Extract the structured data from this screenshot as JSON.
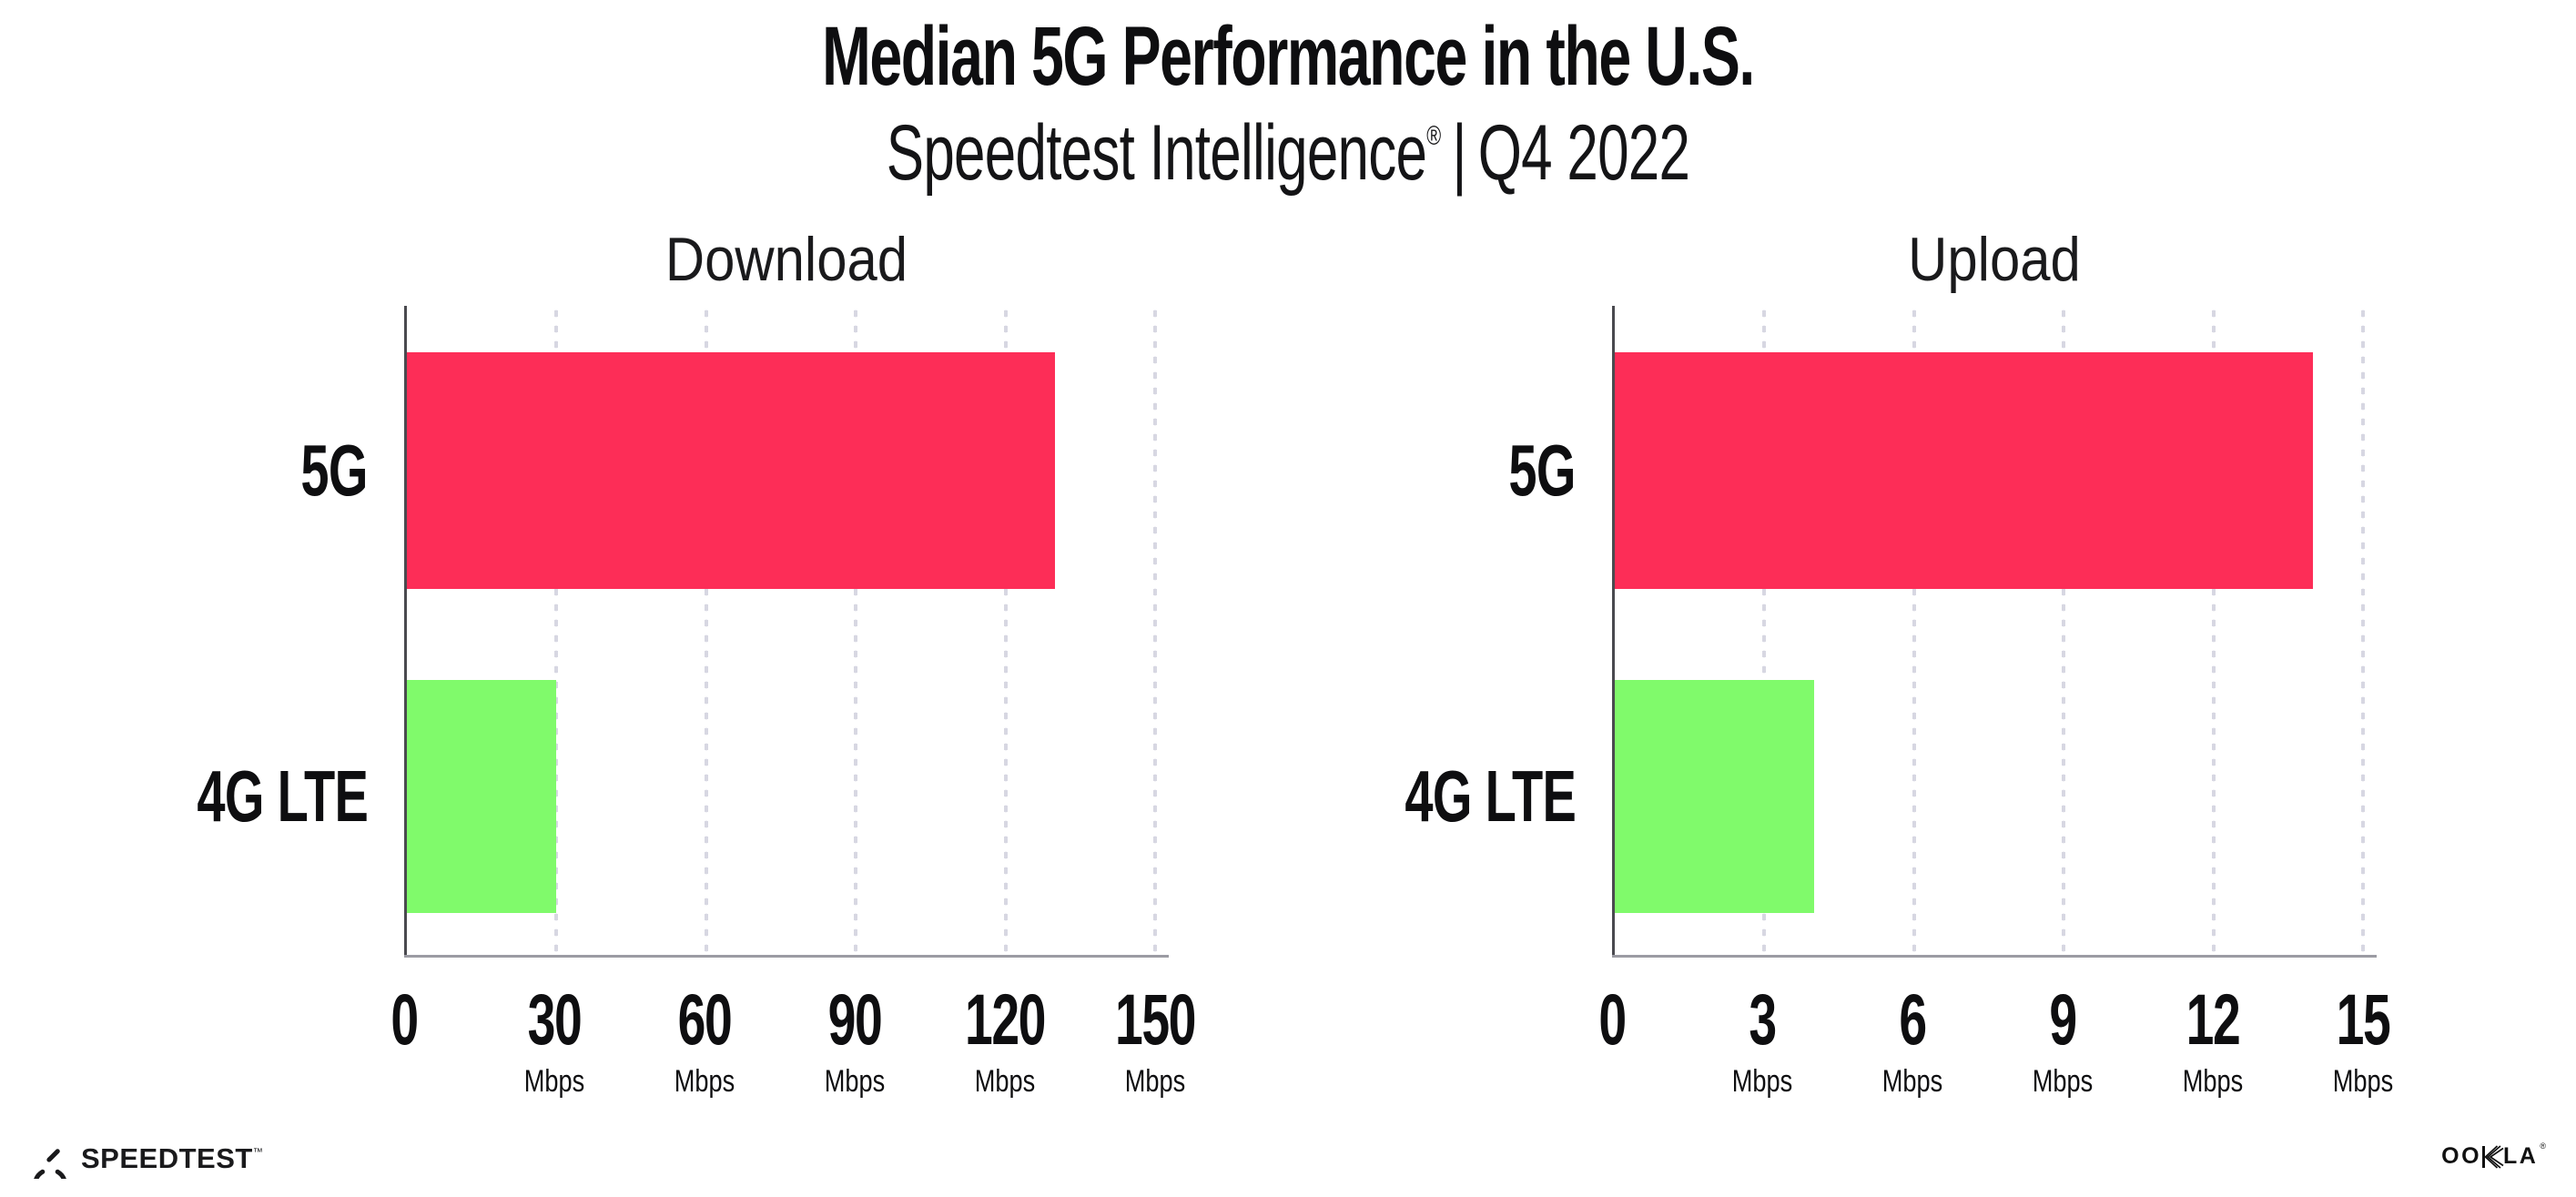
{
  "header": {
    "title": "Median 5G Performance in the U.S.",
    "subtitle": {
      "product": "Speedtest Intelligence",
      "reg": "®",
      "separator": "|",
      "period": "Q4 2022"
    }
  },
  "colors": {
    "bar_5g": "#FD2D57",
    "bar_4g_lte": "#80FA6B",
    "gridline": "#D7D7E2",
    "x_axis": "#9B9BA3",
    "y_axis": "#4A4A4F",
    "text": "#0E0E10"
  },
  "chart_data": [
    {
      "type": "bar",
      "orientation": "horizontal",
      "title": "Download",
      "categories": [
        "5G",
        "4G LTE"
      ],
      "values": [
        130,
        30
      ],
      "unit": "Mbps",
      "xlim": [
        0,
        150
      ],
      "ticks": [
        0,
        30,
        60,
        90,
        120,
        150
      ],
      "series_colors": [
        "#FD2D57",
        "#80FA6B"
      ],
      "grid": "vertical-dotted",
      "legend": "none"
    },
    {
      "type": "bar",
      "orientation": "horizontal",
      "title": "Upload",
      "categories": [
        "5G",
        "4G LTE"
      ],
      "values": [
        14,
        4
      ],
      "unit": "Mbps",
      "xlim": [
        0,
        15
      ],
      "ticks": [
        0,
        3,
        6,
        9,
        12,
        15
      ],
      "series_colors": [
        "#FD2D57",
        "#80FA6B"
      ],
      "grid": "vertical-dotted",
      "legend": "none"
    }
  ],
  "footer": {
    "speedtest": {
      "label": "SPEEDTEST",
      "tm": "™"
    },
    "ookla": {
      "label_left": "OO",
      "label_k": "K",
      "label_right": "LA",
      "reg": "®"
    }
  }
}
